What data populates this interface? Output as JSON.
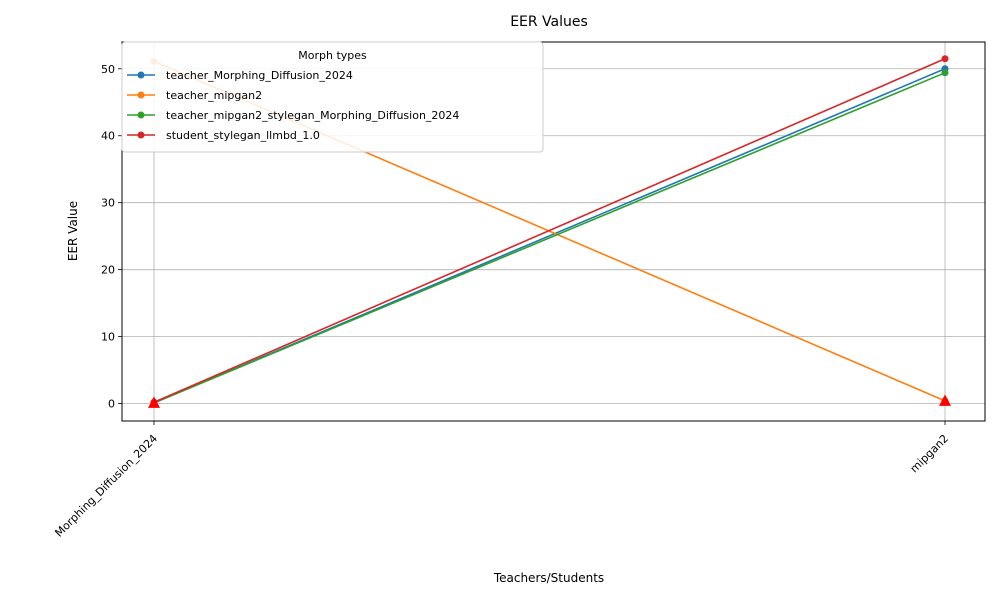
{
  "chart_data": {
    "type": "line",
    "title": "EER Values",
    "xlabel": "Teachers/Students",
    "ylabel": "EER Value",
    "categories": [
      "Morphing_Diffusion_2024",
      "mipgan2"
    ],
    "ylim": [
      -2.6,
      54.0
    ],
    "yticks": [
      0,
      10,
      20,
      30,
      40,
      50
    ],
    "grid": true,
    "legend": {
      "title": "Morph types",
      "placement": "top-left"
    },
    "series": [
      {
        "name": "teacher_Morphing_Diffusion_2024",
        "values": [
          0.1,
          50.0
        ],
        "color": "#1f77b4"
      },
      {
        "name": "teacher_mipgan2",
        "values": [
          51.1,
          0.4
        ],
        "color": "#ff7f0e"
      },
      {
        "name": "teacher_mipgan2_stylegan_Morphing_Diffusion_2024",
        "values": [
          0.1,
          49.4
        ],
        "color": "#2ca02c"
      },
      {
        "name": "student_stylegan_llmbd_1.0",
        "values": [
          0.2,
          51.5
        ],
        "color": "#d62728"
      }
    ],
    "min_markers": {
      "values": [
        0.1,
        0.4
      ],
      "color": "#ff0000",
      "shape": "triangle"
    }
  }
}
